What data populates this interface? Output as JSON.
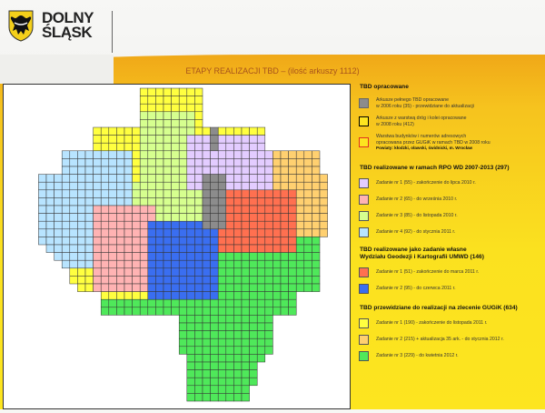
{
  "header": {
    "logo_line1": "DOLNY",
    "logo_line2": "ŚLĄSK",
    "title": "ETAPY  REALIZACJI  TBD – (ilość arkuszy 1112)"
  },
  "legend": {
    "sections": [
      {
        "title": "TBD opracowane",
        "items": [
          {
            "text": "Arkusze pełnego TBD opracowane",
            "text2": "w 2006 roku (35)  - przewidziane do aktualizacji",
            "color": "#8c8c8c",
            "border": "#666666"
          },
          {
            "text": "Arkusze z warstwą dróg i kolei opracowane",
            "text2": "w 2008 roku (412)",
            "color": "#fde51f",
            "border": "#000000"
          },
          {
            "text": "Warstwa budynków i numerów adresowych",
            "text2": "opracowana przez GUGiK w ramach TBD w 2008 roku",
            "color": "#fde51f",
            "border": "#e03020",
            "note": "Powiaty: kłodzki, oławski, świdnicki, m. Wrocław"
          }
        ]
      },
      {
        "title": "TBD realizowane w ramach RPO WD 2007-2013 (297)",
        "items": [
          {
            "text": "Zadanie nr 1 (55) - zakończenie do lipca 2010 r.",
            "color": "#e3ccff"
          },
          {
            "text": "Zadanie nr 2 (65) - do września 2010 r.",
            "color": "#ffb3b3"
          },
          {
            "text": "Zadanie nr 3 (85) - do listopada 2010 r.",
            "color": "#d6ff8f"
          },
          {
            "text": "Zadanie nr 4 (92) - do stycznia 2011 r.",
            "color": "#b8e4ff"
          }
        ]
      },
      {
        "title": "TBD realizowane jako zadanie własne",
        "title2": "Wydziału Geodezji i Kartografii UMWD (146)",
        "items": [
          {
            "text": "Zadanie nr 1 (51) - zakończenie do marca 2011 r.",
            "color": "#ff7050"
          },
          {
            "text": "Zadanie nr 2 (95) - do czerwca 2011  r.",
            "color": "#3a6ef0"
          }
        ]
      },
      {
        "title": "TBD przewidziane do realizacji na zlecenie GUGiK (634)",
        "items": [
          {
            "text": "Zadanie nr 1 (190) - zakończenie do listopada 2011 r.",
            "color": "#ffff40"
          },
          {
            "text": "Zadanie nr 2 (215) + aktualizacja 35 ark. - do stycznia 2012 r.",
            "color": "#ffd070"
          },
          {
            "text": "Zadanie nr 3 (229) - do kwietnia 2012 r.",
            "color": "#4fe85a"
          }
        ]
      }
    ]
  }
}
